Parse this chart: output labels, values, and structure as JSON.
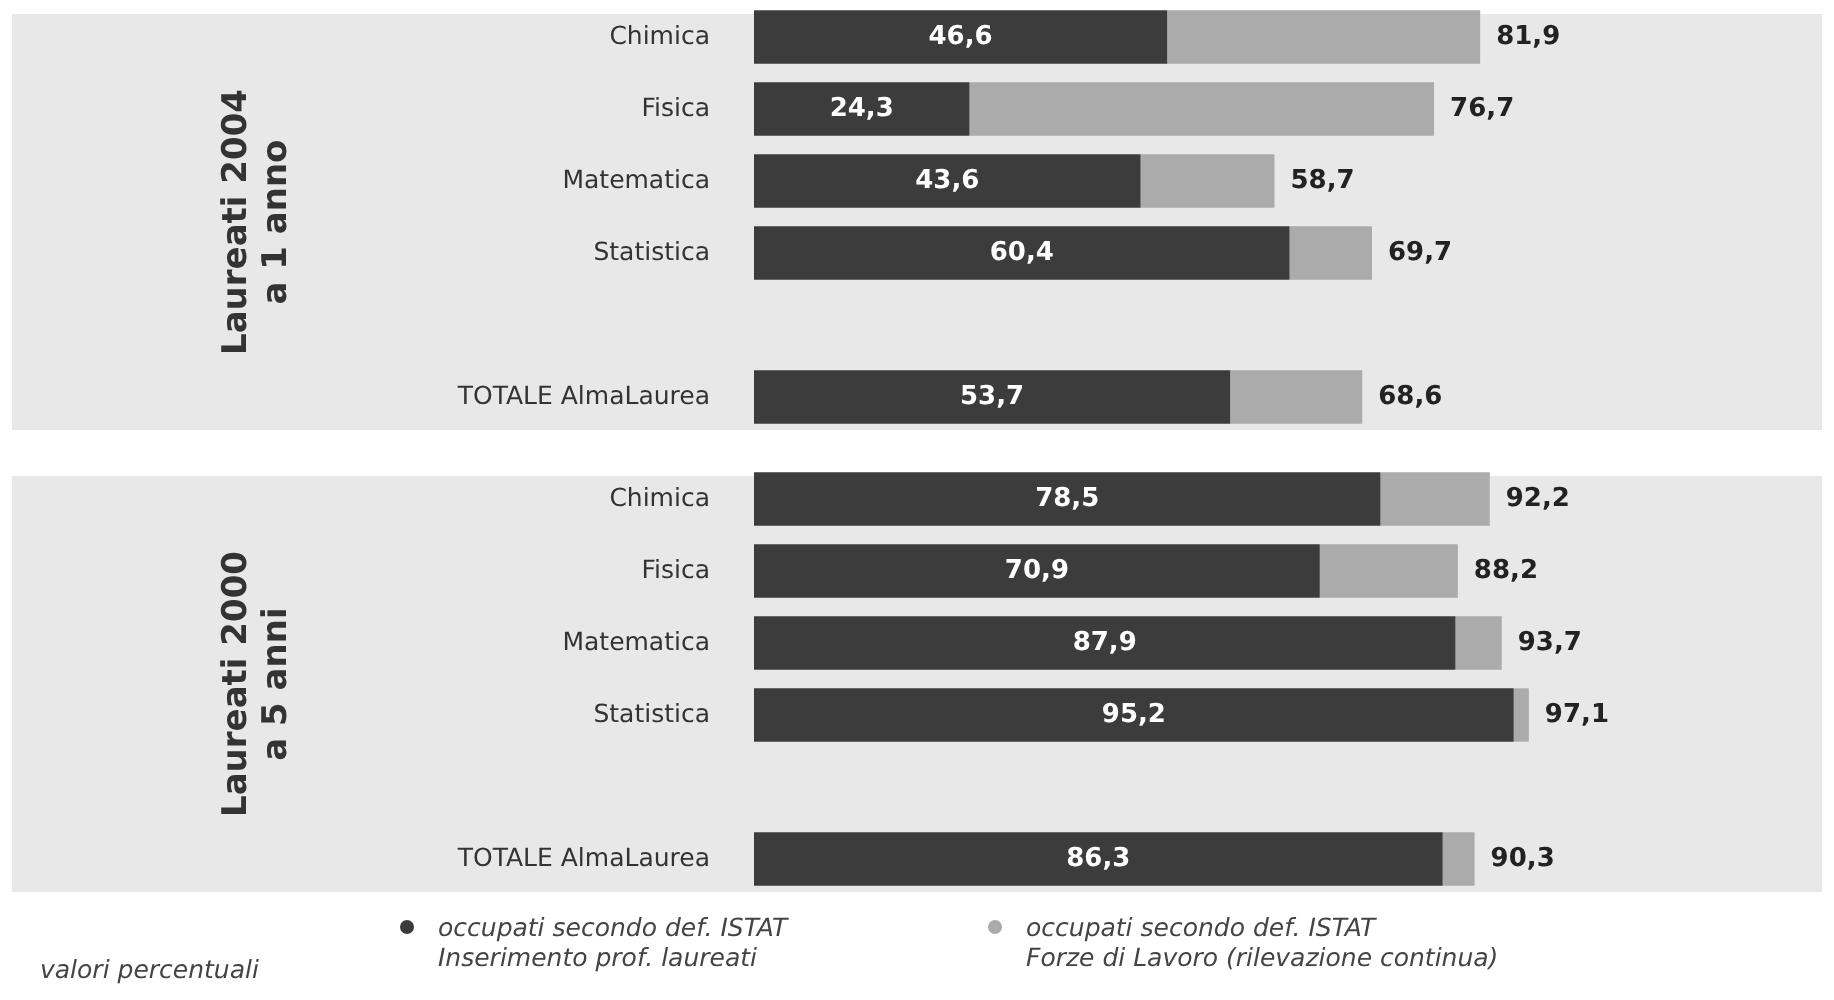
{
  "chart_data": [
    {
      "type": "bar",
      "orientation": "horizontal",
      "stacked": true,
      "title": "Laureati 2004\na 1 anno",
      "categories": [
        "Chimica",
        "Fisica",
        "Matematica",
        "Statistica",
        null,
        "TOTALE AlmaLaurea"
      ],
      "legend": "bottom",
      "totals": [
        "81,9",
        "76,7",
        "58,7",
        "69,7",
        null,
        "68,6"
      ],
      "series": [
        {
          "name": "occupati secondo def. ISTAT\nInserimento prof. laureati",
          "color": "#3c3c3c",
          "values": [
            46.6,
            24.3,
            43.6,
            60.4,
            null,
            53.7
          ],
          "value_labels": [
            "46,6",
            "24,3",
            "43,6",
            "60,4",
            null,
            "53,7"
          ]
        },
        {
          "name": "occupati secondo def. ISTAT\nForze di Lavoro (rilevazione continua)",
          "color": "#ababab",
          "values": [
            35.3,
            52.4,
            15.1,
            9.3,
            null,
            14.9
          ]
        }
      ]
    },
    {
      "type": "bar",
      "orientation": "horizontal",
      "stacked": true,
      "title": "Laureati 2000\na 5 anni",
      "categories": [
        "Chimica",
        "Fisica",
        "Matematica",
        "Statistica",
        null,
        "TOTALE AlmaLaurea"
      ],
      "totals": [
        "92,2",
        "88,2",
        "93,7",
        "97,1",
        null,
        "90,3"
      ],
      "annotations": [
        "valori percentuali"
      ],
      "series": [
        {
          "color": "#3c3c3c",
          "values": [
            78.5,
            70.9,
            87.9,
            95.2,
            null,
            86.3
          ],
          "value_labels": [
            "78,5",
            "70,9",
            "87,9",
            "95,2",
            null,
            "86,3"
          ]
        },
        {
          "color": "#ababab",
          "values": [
            13.7,
            17.3,
            5.8,
            1.9,
            null,
            4.0
          ]
        }
      ]
    }
  ]
}
